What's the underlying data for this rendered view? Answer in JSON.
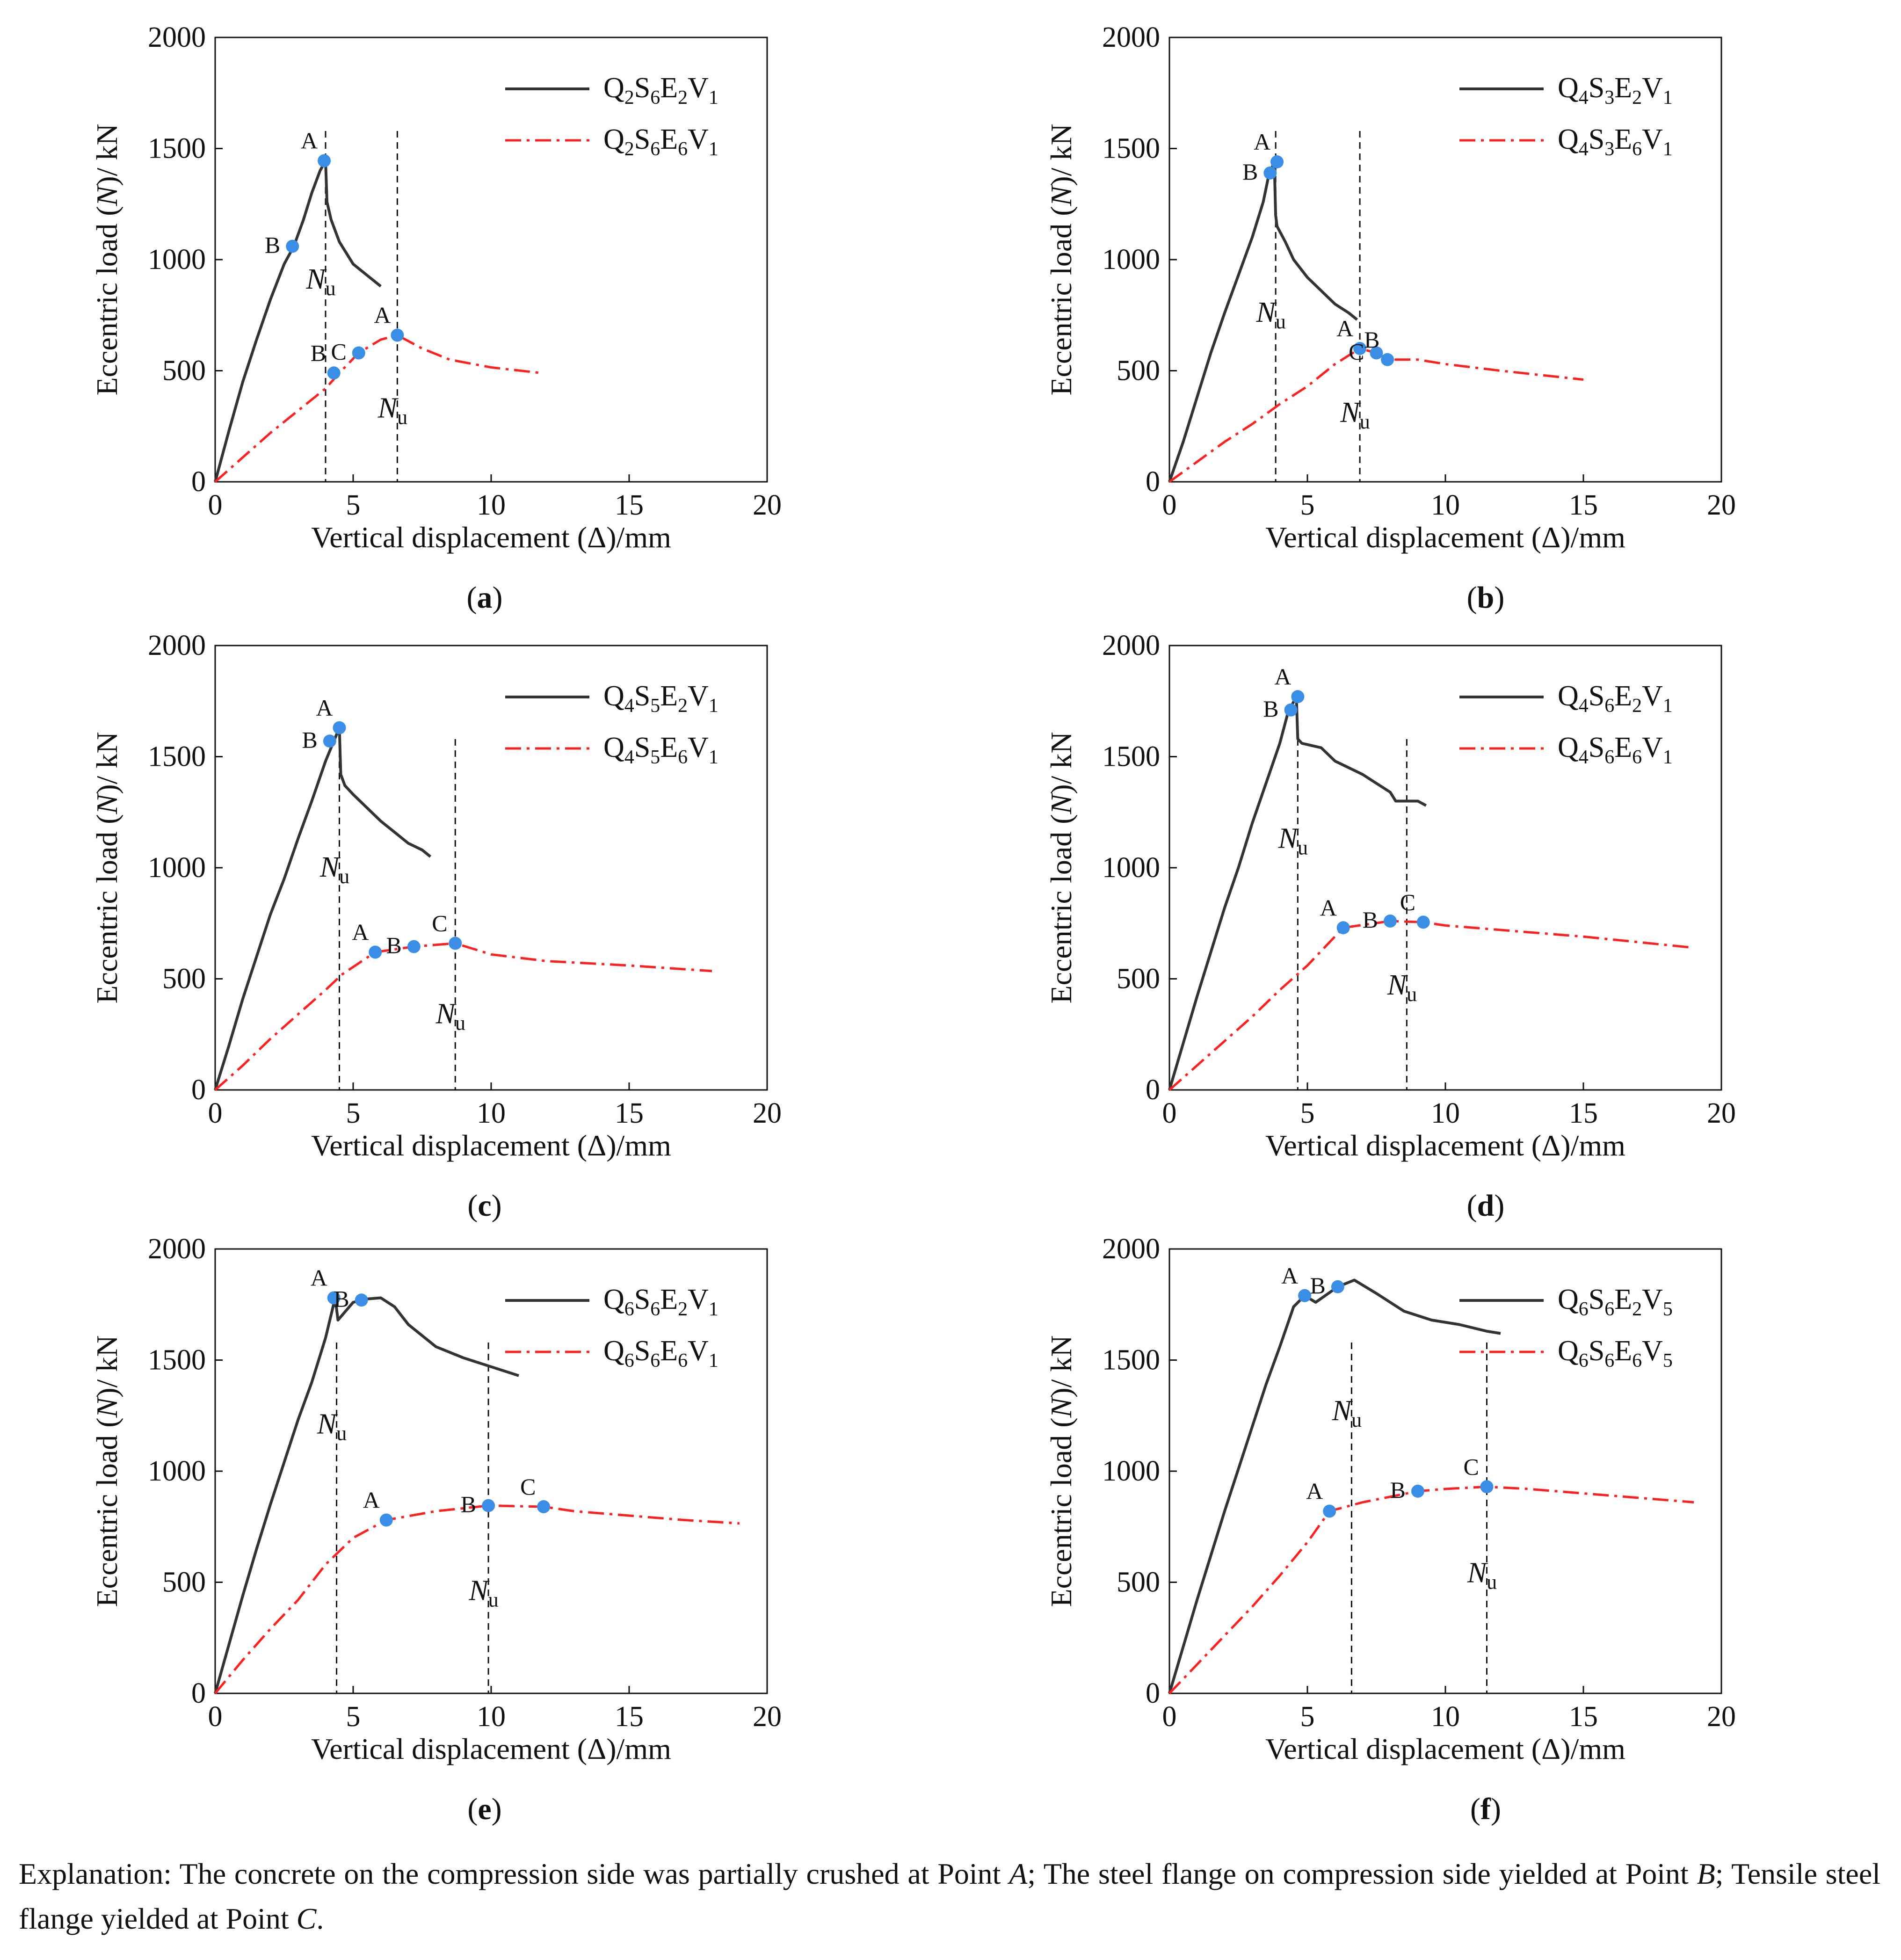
{
  "explanation": {
    "prefix": "Explanation: The concrete on the compression side was partially crushed at Point",
    "a": "A",
    "mid1": "; The steel flange on compression side yielded at Point",
    "b": "B",
    "mid2": "; Tensile steel flange yielded at Point",
    "c": "C",
    "end": "."
  },
  "colors": {
    "solid": "#333333",
    "dashed": "#ff1f1f",
    "point": "#3a8ee6",
    "axis": "#111111"
  },
  "chart_data": [
    {
      "id": "a",
      "caption": "a",
      "type": "line",
      "xlabel": "Vertical displacement (Δ)/mm",
      "ylabel": "Eccentric load (N)/ kN",
      "xlim": [
        0,
        20
      ],
      "ylim": [
        0,
        2000
      ],
      "xticks": [
        "0",
        "5",
        "10",
        "15",
        "20"
      ],
      "yticks": [
        "0",
        "500",
        "1000",
        "1500",
        "2000"
      ],
      "series": [
        {
          "legend": [
            "Q",
            "2",
            "S",
            "6",
            "E",
            "2",
            "V",
            "1"
          ],
          "style": "solid",
          "x": [
            0,
            0.5,
            1.0,
            1.5,
            2.0,
            2.5,
            2.85,
            3.2,
            3.5,
            3.8,
            4.0,
            4.05,
            4.2,
            4.5,
            5.0,
            5.5,
            6.0
          ],
          "y": [
            0,
            230,
            450,
            640,
            820,
            980,
            1060,
            1180,
            1300,
            1400,
            1445,
            1260,
            1180,
            1080,
            980,
            930,
            880
          ]
        },
        {
          "legend": [
            "Q",
            "2",
            "S",
            "6",
            "E",
            "6",
            "V",
            "1"
          ],
          "style": "dashdot",
          "x": [
            0,
            1,
            2,
            3,
            4,
            4.5,
            5.2,
            6.0,
            6.6,
            7.5,
            8.5,
            10.0,
            11.8
          ],
          "y": [
            0,
            110,
            220,
            320,
            420,
            490,
            580,
            640,
            660,
            600,
            550,
            515,
            490
          ]
        }
      ],
      "points": [
        {
          "label": "A",
          "x": 3.95,
          "y": 1445
        },
        {
          "label": "B",
          "x": 2.8,
          "y": 1060
        },
        {
          "label": "B",
          "x": 4.3,
          "y": 490
        },
        {
          "label": "C",
          "x": 5.2,
          "y": 580
        },
        {
          "label": "A",
          "x": 6.6,
          "y": 660
        }
      ],
      "vlines": [
        4.0,
        6.6
      ],
      "nu": [
        {
          "text": "N",
          "sub": "u",
          "x": 4.0,
          "y": 870
        },
        {
          "text": "N",
          "sub": "u",
          "x": 6.6,
          "y": 290
        }
      ]
    },
    {
      "id": "b",
      "caption": "b",
      "type": "line",
      "xlabel": "Vertical displacement (Δ)/mm",
      "ylabel": "Eccentric load (N)/ kN",
      "xlim": [
        0,
        20
      ],
      "ylim": [
        0,
        2000
      ],
      "xticks": [
        "0",
        "5",
        "10",
        "15",
        "20"
      ],
      "yticks": [
        "0",
        "500",
        "1000",
        "1500",
        "2000"
      ],
      "series": [
        {
          "legend": [
            "Q",
            "4",
            "S",
            "3",
            "E",
            "2",
            "V",
            "1"
          ],
          "style": "solid",
          "x": [
            0,
            0.5,
            1.0,
            1.5,
            2.0,
            2.5,
            3.0,
            3.4,
            3.6,
            3.8,
            3.85,
            3.9,
            4.2,
            4.5,
            5.0,
            5.5,
            6.0,
            6.5,
            6.8
          ],
          "y": [
            0,
            180,
            380,
            580,
            760,
            930,
            1100,
            1260,
            1380,
            1440,
            1200,
            1150,
            1080,
            1000,
            920,
            860,
            800,
            760,
            730
          ]
        },
        {
          "legend": [
            "Q",
            "4",
            "S",
            "3",
            "E",
            "6",
            "V",
            "1"
          ],
          "style": "dashdot",
          "x": [
            0,
            1,
            2,
            3,
            4,
            5,
            6,
            6.9,
            7.5,
            8.0,
            9.0,
            10.0,
            12.0,
            15.0
          ],
          "y": [
            0,
            90,
            180,
            260,
            350,
            430,
            530,
            600,
            580,
            550,
            550,
            530,
            500,
            460
          ]
        }
      ],
      "points": [
        {
          "label": "A",
          "x": 3.9,
          "y": 1440
        },
        {
          "label": "B",
          "x": 3.65,
          "y": 1390
        },
        {
          "label": "A",
          "x": 6.9,
          "y": 600
        },
        {
          "label": "C",
          "x": 7.5,
          "y": 580
        },
        {
          "label": "B",
          "x": 7.9,
          "y": 550
        }
      ],
      "vlines": [
        3.85,
        6.9
      ],
      "nu": [
        {
          "text": "N",
          "sub": "u",
          "x": 3.85,
          "y": 720
        },
        {
          "text": "N",
          "sub": "u",
          "x": 6.9,
          "y": 270
        }
      ]
    },
    {
      "id": "c",
      "caption": "c",
      "type": "line",
      "xlabel": "Vertical displacement (Δ)/mm",
      "ylabel": "Eccentric load (N)/ kN",
      "xlim": [
        0,
        20
      ],
      "ylim": [
        0,
        2000
      ],
      "xticks": [
        "0",
        "5",
        "10",
        "15",
        "20"
      ],
      "yticks": [
        "0",
        "500",
        "1000",
        "1500",
        "2000"
      ],
      "series": [
        {
          "legend": [
            "Q",
            "4",
            "S",
            "5",
            "E",
            "2",
            "V",
            "1"
          ],
          "style": "solid",
          "x": [
            0,
            0.5,
            1.0,
            1.5,
            2.0,
            2.5,
            3.0,
            3.5,
            4.0,
            4.3,
            4.5,
            4.55,
            4.7,
            5.0,
            5.5,
            6.0,
            6.5,
            7.0,
            7.5,
            7.8
          ],
          "y": [
            0,
            200,
            410,
            600,
            790,
            950,
            1130,
            1300,
            1480,
            1570,
            1630,
            1420,
            1370,
            1330,
            1270,
            1210,
            1160,
            1110,
            1080,
            1050
          ]
        },
        {
          "legend": [
            "Q",
            "4",
            "S",
            "5",
            "E",
            "6",
            "V",
            "1"
          ],
          "style": "dashdot",
          "x": [
            0,
            1,
            2,
            3,
            4,
            4.6,
            5.8,
            7.2,
            8.7,
            10.0,
            12.0,
            15.0,
            18.0
          ],
          "y": [
            0,
            110,
            230,
            340,
            450,
            520,
            620,
            645,
            660,
            610,
            580,
            560,
            535
          ]
        }
      ],
      "points": [
        {
          "label": "A",
          "x": 4.5,
          "y": 1630
        },
        {
          "label": "B",
          "x": 4.15,
          "y": 1570
        },
        {
          "label": "A",
          "x": 5.8,
          "y": 620
        },
        {
          "label": "B",
          "x": 7.2,
          "y": 645
        },
        {
          "label": "C",
          "x": 8.7,
          "y": 660
        }
      ],
      "vlines": [
        4.5,
        8.7
      ],
      "nu": [
        {
          "text": "N",
          "sub": "u",
          "x": 4.5,
          "y": 960
        },
        {
          "text": "N",
          "sub": "u",
          "x": 8.7,
          "y": 300
        }
      ]
    },
    {
      "id": "d",
      "caption": "d",
      "type": "line",
      "xlabel": "Vertical displacement (Δ)/mm",
      "ylabel": "Eccentric load (N)/ kN",
      "xlim": [
        0,
        20
      ],
      "ylim": [
        0,
        2000
      ],
      "xticks": [
        "0",
        "5",
        "10",
        "15",
        "20"
      ],
      "yticks": [
        "0",
        "500",
        "1000",
        "1500",
        "2000"
      ],
      "series": [
        {
          "legend": [
            "Q",
            "4",
            "S",
            "6",
            "E",
            "2",
            "V",
            "1"
          ],
          "style": "solid",
          "x": [
            0,
            0.5,
            1.0,
            1.5,
            2.0,
            2.5,
            3.0,
            3.5,
            4.0,
            4.3,
            4.6,
            4.65,
            4.8,
            5.5,
            6.0,
            7.0,
            8.0,
            8.2,
            9.0,
            9.3
          ],
          "y": [
            0,
            210,
            420,
            620,
            820,
            1000,
            1200,
            1380,
            1560,
            1700,
            1770,
            1580,
            1560,
            1540,
            1480,
            1420,
            1340,
            1300,
            1300,
            1280
          ]
        },
        {
          "legend": [
            "Q",
            "4",
            "S",
            "6",
            "E",
            "6",
            "V",
            "1"
          ],
          "style": "dashdot",
          "x": [
            0,
            1,
            2,
            3,
            4,
            5,
            6.3,
            8.0,
            9.2,
            10.0,
            12.0,
            15.0,
            19.0
          ],
          "y": [
            0,
            110,
            220,
            330,
            450,
            560,
            730,
            760,
            755,
            740,
            720,
            690,
            640
          ]
        }
      ],
      "points": [
        {
          "label": "A",
          "x": 4.65,
          "y": 1770
        },
        {
          "label": "B",
          "x": 4.4,
          "y": 1710
        },
        {
          "label": "A",
          "x": 6.3,
          "y": 730
        },
        {
          "label": "B",
          "x": 8.0,
          "y": 760
        },
        {
          "label": "C",
          "x": 9.2,
          "y": 755
        }
      ],
      "vlines": [
        4.65,
        8.6
      ],
      "nu": [
        {
          "text": "N",
          "sub": "u",
          "x": 4.65,
          "y": 1090
        },
        {
          "text": "N",
          "sub": "u",
          "x": 8.6,
          "y": 430
        }
      ]
    },
    {
      "id": "e",
      "caption": "e",
      "type": "line",
      "xlabel": "Vertical displacement (Δ)/mm",
      "ylabel": "Eccentric load (N)/ kN",
      "xlim": [
        0,
        20
      ],
      "ylim": [
        0,
        2000
      ],
      "xticks": [
        "0",
        "5",
        "10",
        "15",
        "20"
      ],
      "yticks": [
        "0",
        "500",
        "1000",
        "1500",
        "2000"
      ],
      "series": [
        {
          "legend": [
            "Q",
            "6",
            "S",
            "6",
            "E",
            "2",
            "V",
            "1"
          ],
          "style": "solid",
          "x": [
            0,
            0.5,
            1.0,
            1.5,
            2.0,
            2.5,
            3.0,
            3.5,
            4.0,
            4.35,
            4.45,
            5.0,
            5.5,
            6.0,
            6.5,
            7.0,
            8.0,
            9.0,
            10.0,
            11.0
          ],
          "y": [
            0,
            220,
            440,
            650,
            850,
            1040,
            1230,
            1400,
            1600,
            1780,
            1680,
            1760,
            1775,
            1780,
            1740,
            1660,
            1560,
            1510,
            1470,
            1430
          ]
        },
        {
          "legend": [
            "Q",
            "6",
            "S",
            "6",
            "E",
            "6",
            "V",
            "1"
          ],
          "style": "dashdot",
          "x": [
            0,
            1,
            2,
            3,
            4,
            5,
            6.2,
            8.0,
            9.9,
            11.9,
            13.0,
            15.0,
            17.0,
            19.0
          ],
          "y": [
            0,
            150,
            290,
            420,
            580,
            700,
            780,
            820,
            845,
            840,
            820,
            800,
            780,
            765
          ]
        }
      ],
      "points": [
        {
          "label": "A",
          "x": 4.3,
          "y": 1780
        },
        {
          "label": "B",
          "x": 5.3,
          "y": 1770
        },
        {
          "label": "A",
          "x": 6.2,
          "y": 780
        },
        {
          "label": "B",
          "x": 9.9,
          "y": 845
        },
        {
          "label": "C",
          "x": 11.9,
          "y": 840
        }
      ],
      "vlines": [
        4.4,
        9.9
      ],
      "nu": [
        {
          "text": "N",
          "sub": "u",
          "x": 4.4,
          "y": 1170
        },
        {
          "text": "N",
          "sub": "u",
          "x": 9.9,
          "y": 420
        }
      ]
    },
    {
      "id": "f",
      "caption": "f",
      "type": "line",
      "xlabel": "Vertical displacement (Δ)/mm",
      "ylabel": "Eccentric load (N)/ kN",
      "xlim": [
        0,
        20
      ],
      "ylim": [
        0,
        2000
      ],
      "xticks": [
        "0",
        "5",
        "10",
        "15",
        "20"
      ],
      "yticks": [
        "0",
        "500",
        "1000",
        "1500",
        "2000"
      ],
      "series": [
        {
          "legend": [
            "Q",
            "6",
            "S",
            "6",
            "E",
            "2",
            "V",
            "5"
          ],
          "style": "solid",
          "x": [
            0,
            0.5,
            1.0,
            1.5,
            2.0,
            2.5,
            3.0,
            3.5,
            4.0,
            4.5,
            4.9,
            5.3,
            6.1,
            6.7,
            7.5,
            8.5,
            9.5,
            10.5,
            11.5,
            12.0
          ],
          "y": [
            0,
            210,
            420,
            620,
            820,
            1010,
            1200,
            1390,
            1560,
            1740,
            1790,
            1760,
            1830,
            1860,
            1800,
            1720,
            1680,
            1660,
            1630,
            1620
          ]
        },
        {
          "legend": [
            "Q",
            "6",
            "S",
            "6",
            "E",
            "6",
            "V",
            "5"
          ],
          "style": "dashdot",
          "x": [
            0,
            1,
            2,
            3,
            4,
            5,
            5.8,
            7.0,
            9.0,
            10.0,
            11.5,
            13.0,
            15.0,
            17.0,
            19.0
          ],
          "y": [
            0,
            130,
            260,
            390,
            530,
            680,
            820,
            860,
            910,
            920,
            930,
            920,
            900,
            880,
            860
          ]
        }
      ],
      "points": [
        {
          "label": "A",
          "x": 4.9,
          "y": 1790
        },
        {
          "label": "B",
          "x": 6.1,
          "y": 1830
        },
        {
          "label": "A",
          "x": 5.8,
          "y": 820
        },
        {
          "label": "B",
          "x": 9.0,
          "y": 910
        },
        {
          "label": "C",
          "x": 11.5,
          "y": 930
        }
      ],
      "vlines": [
        6.6,
        11.5
      ],
      "nu": [
        {
          "text": "N",
          "sub": "u",
          "x": 6.6,
          "y": 1230
        },
        {
          "text": "N",
          "sub": "u",
          "x": 11.5,
          "y": 500
        }
      ]
    }
  ]
}
